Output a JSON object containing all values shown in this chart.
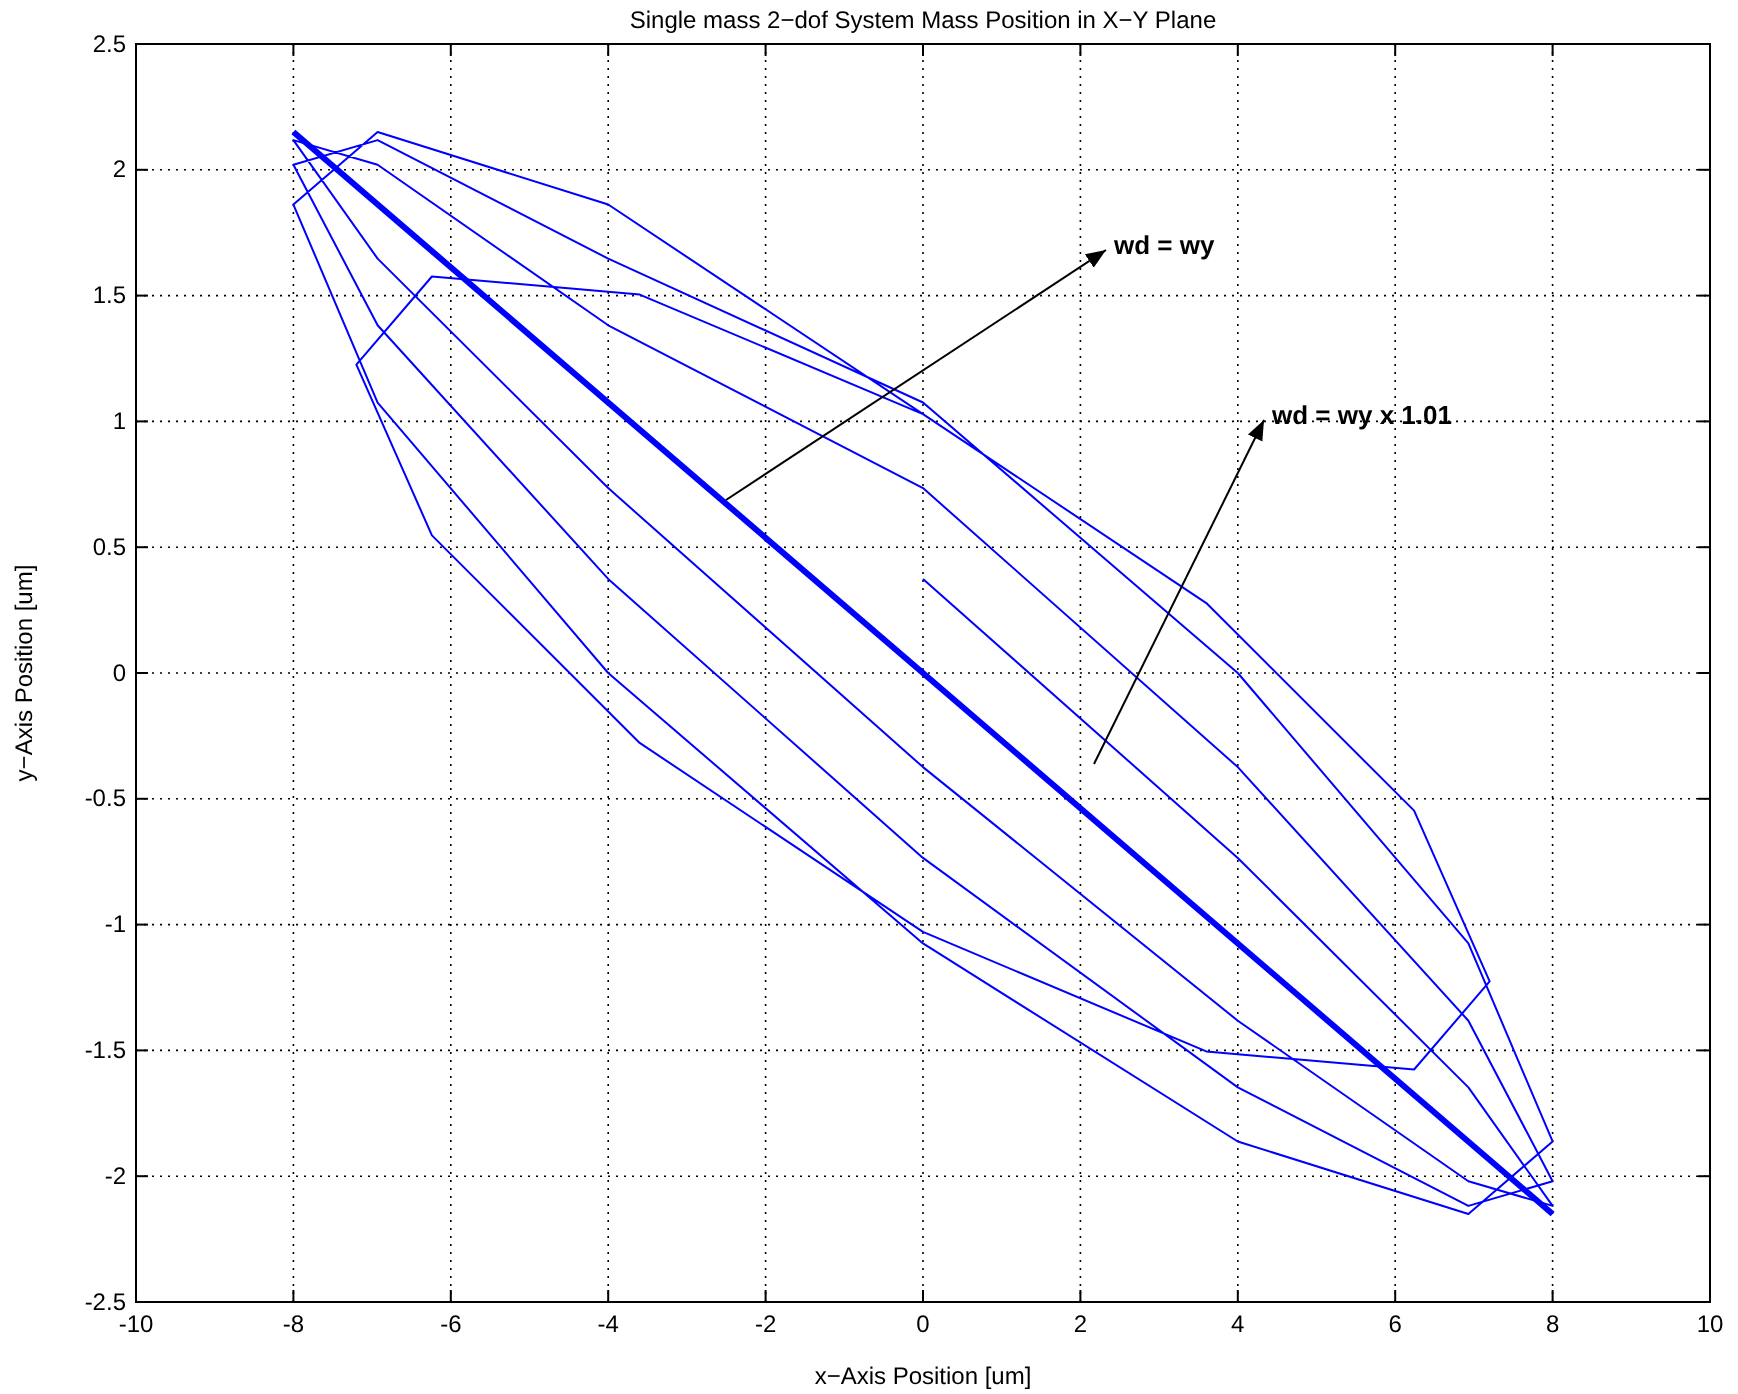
{
  "chart_data": {
    "type": "line",
    "title": "Single mass 2−dof System Mass Position in X−Y Plane",
    "xlabel": "x−Axis Position [um]",
    "ylabel": "y−Axis Position [um]",
    "xlim": [
      -10,
      10
    ],
    "xticks": [
      -10,
      -8,
      -6,
      -4,
      -2,
      0,
      2,
      4,
      6,
      8,
      10
    ],
    "ylim": [
      -2.5,
      2.5
    ],
    "yticks": [
      -2.5,
      -2,
      -1.5,
      -1,
      -0.5,
      0,
      0.5,
      1,
      1.5,
      2,
      2.5
    ],
    "grid": true,
    "line_style": "solid",
    "series": [
      {
        "color": "#0000ff",
        "x": [
          0,
          4,
          6.93,
          8,
          6.93,
          4,
          0,
          -4,
          -6.93,
          -8,
          -6.93,
          -4,
          0,
          4,
          6.93,
          8,
          6.93,
          4,
          0,
          -4,
          -6.93,
          -8,
          -6.93,
          -4,
          0,
          4,
          6.93,
          8,
          6.93,
          4,
          0,
          -4,
          -6.93,
          -8,
          -6.93,
          -4,
          0,
          3.6,
          6.24,
          7.2,
          6.24,
          3.6,
          0,
          -3.6,
          -6.24,
          -7.2,
          -6.24,
          -3.6,
          0
        ],
        "values": [
          0.374,
          -0.735,
          -1.647,
          -2.118,
          -2.02,
          -1.382,
          -0.374,
          0.735,
          1.647,
          2.118,
          2.02,
          1.382,
          0.735,
          -0.374,
          -1.382,
          -2.02,
          -2.118,
          -1.647,
          -0.735,
          0.374,
          1.382,
          2.02,
          2.118,
          1.647,
          1.075,
          0,
          -1.075,
          -1.862,
          -2.15,
          -1.862,
          -1.075,
          0,
          1.075,
          1.862,
          2.15,
          1.862,
          1.029,
          0.278,
          -0.547,
          -1.226,
          -1.576,
          -1.504,
          -1.029,
          -0.278,
          0.547,
          1.226,
          1.576,
          1.504,
          1.029
        ]
      },
      {
        "color": "#0000ff",
        "x": [
          -8,
          8
        ],
        "values": [
          2.15,
          -2.15
        ]
      }
    ],
    "annotations": [
      "wd = wy",
      "wd = wy x 1.01"
    ]
  }
}
